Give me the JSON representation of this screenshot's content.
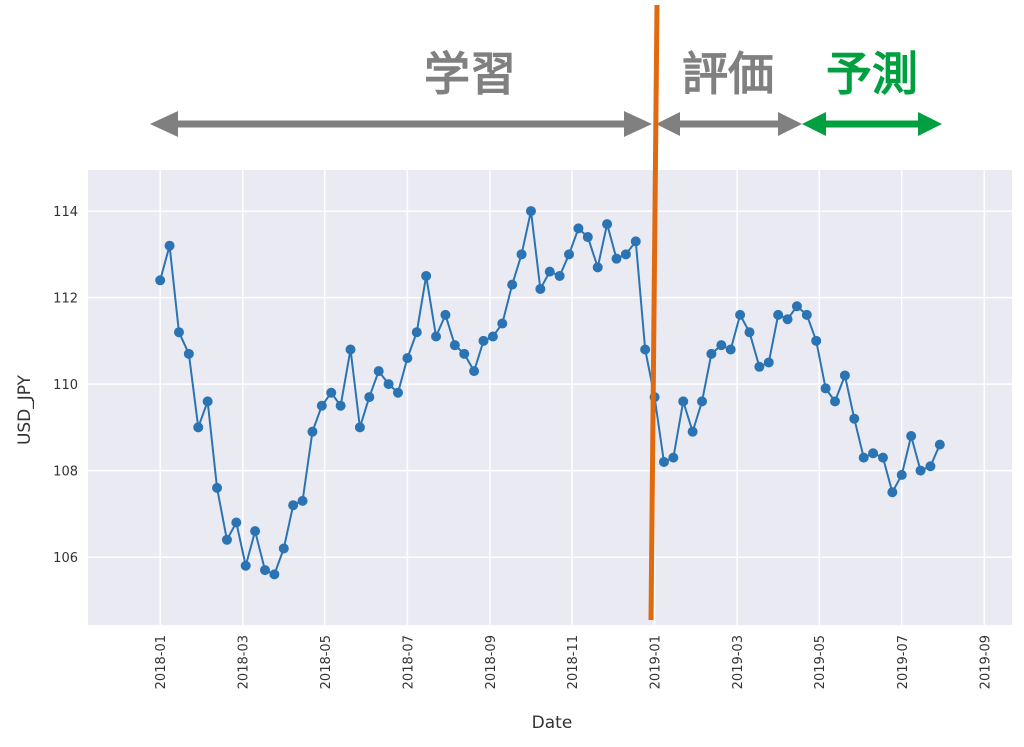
{
  "chart_data": {
    "type": "line",
    "x_label": "Date",
    "y_label": "USD_JPY",
    "x": [
      2018.0,
      2018.019,
      2018.038,
      2018.058,
      2018.077,
      2018.096,
      2018.115,
      2018.135,
      2018.154,
      2018.173,
      2018.192,
      2018.212,
      2018.231,
      2018.25,
      2018.269,
      2018.288,
      2018.308,
      2018.327,
      2018.346,
      2018.365,
      2018.385,
      2018.404,
      2018.423,
      2018.442,
      2018.462,
      2018.481,
      2018.5,
      2018.519,
      2018.538,
      2018.558,
      2018.577,
      2018.596,
      2018.615,
      2018.635,
      2018.654,
      2018.673,
      2018.692,
      2018.712,
      2018.731,
      2018.75,
      2018.769,
      2018.788,
      2018.808,
      2018.827,
      2018.846,
      2018.865,
      2018.885,
      2018.904,
      2018.923,
      2018.942,
      2018.962,
      2018.981,
      2019.0,
      2019.019,
      2019.038,
      2019.058,
      2019.077,
      2019.096,
      2019.115,
      2019.135,
      2019.154,
      2019.173,
      2019.192,
      2019.212,
      2019.231,
      2019.25,
      2019.269,
      2019.288,
      2019.308,
      2019.327,
      2019.346,
      2019.365,
      2019.385,
      2019.404,
      2019.423,
      2019.442,
      2019.462,
      2019.481,
      2019.5,
      2019.519,
      2019.538,
      2019.558,
      2019.577
    ],
    "series": [
      {
        "name": "USD_JPY",
        "color": "#2b74b3",
        "values": [
          112.4,
          113.2,
          111.2,
          110.7,
          109.0,
          109.6,
          107.6,
          106.4,
          106.8,
          105.8,
          106.6,
          105.7,
          105.6,
          106.2,
          107.2,
          107.3,
          108.9,
          109.5,
          109.8,
          109.5,
          110.8,
          109.0,
          109.7,
          110.3,
          110.0,
          109.8,
          110.6,
          111.2,
          112.5,
          111.1,
          111.6,
          110.9,
          110.7,
          110.3,
          111.0,
          111.1,
          111.4,
          112.3,
          113.0,
          114.0,
          112.2,
          112.6,
          112.5,
          113.0,
          113.6,
          113.4,
          112.7,
          113.7,
          112.9,
          113.0,
          113.3,
          110.8,
          109.7,
          108.2,
          108.3,
          109.6,
          108.9,
          109.6,
          110.7,
          110.9,
          110.8,
          111.6,
          111.2,
          110.4,
          110.5,
          111.6,
          111.5,
          111.8,
          111.6,
          111.0,
          109.9,
          109.6,
          110.2,
          109.2,
          108.3,
          108.4,
          108.3,
          107.5,
          107.9,
          108.8,
          108.0,
          108.1,
          108.6
        ]
      }
    ],
    "xlim": [
      2017.854,
      2019.723
    ],
    "ylim": [
      104.43,
      114.95
    ],
    "xticks": [
      {
        "value": 2018.0,
        "label": "2018-01"
      },
      {
        "value": 2018.167,
        "label": "2018-03"
      },
      {
        "value": 2018.333,
        "label": "2018-05"
      },
      {
        "value": 2018.5,
        "label": "2018-07"
      },
      {
        "value": 2018.667,
        "label": "2018-09"
      },
      {
        "value": 2018.833,
        "label": "2018-11"
      },
      {
        "value": 2019.0,
        "label": "2019-01"
      },
      {
        "value": 2019.167,
        "label": "2019-03"
      },
      {
        "value": 2019.333,
        "label": "2019-05"
      },
      {
        "value": 2019.5,
        "label": "2019-07"
      },
      {
        "value": 2019.667,
        "label": "2019-09"
      }
    ],
    "yticks": [
      106,
      108,
      110,
      112,
      114
    ],
    "grid": true,
    "annotations": [
      "学習",
      "評価",
      "予測"
    ]
  }
}
